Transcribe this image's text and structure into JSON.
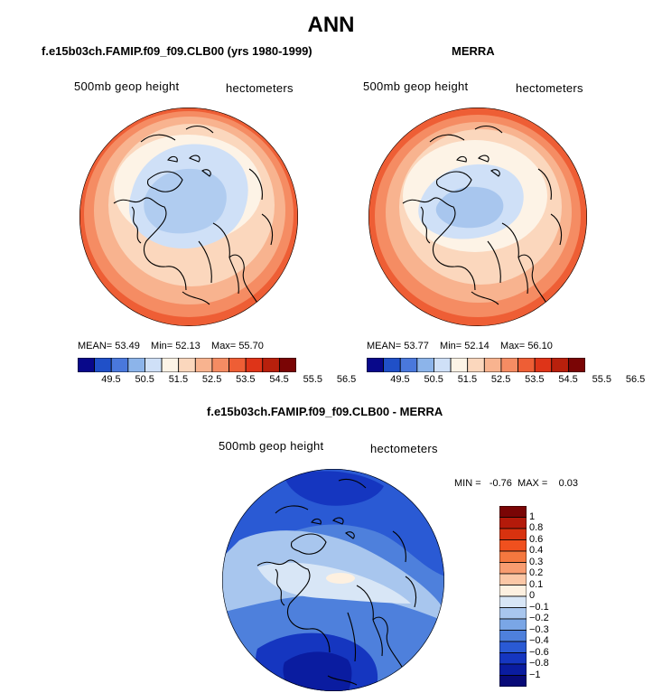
{
  "title": "ANN",
  "panels": [
    {
      "title": "f.e15b03ch.FAMIP.f09_f09.CLB00 (yrs 1980-1999)",
      "variable_label": "500mb geop height",
      "units_label": "hectometers",
      "stats": {
        "mean": "53.49",
        "min": "52.13",
        "max": "55.70"
      }
    },
    {
      "title": "MERRA",
      "variable_label": "500mb geop height",
      "units_label": "hectometers",
      "stats": {
        "mean": "53.77",
        "min": "52.14",
        "max": "56.10"
      }
    }
  ],
  "stat_labels": {
    "mean": "MEAN=",
    "min": "Min=",
    "max": "Max="
  },
  "abs_colorbar": {
    "colors": [
      "#08088a",
      "#2050c8",
      "#4a78dc",
      "#8cb4ea",
      "#cfe0f7",
      "#fdf3e6",
      "#fbd7bd",
      "#f8b38f",
      "#f58c63",
      "#ee5e35",
      "#de3418",
      "#b8200c",
      "#7a0505"
    ],
    "tick_labels": [
      "49.5",
      "50.5",
      "51.5",
      "52.5",
      "53.5",
      "54.5",
      "55.5",
      "56.5"
    ]
  },
  "diff_panel": {
    "title": "f.e15b03ch.FAMIP.f09_f09.CLB00 - MERRA",
    "variable_label": "500mb geop height",
    "units_label": "hectometers",
    "min_label": "MIN =",
    "min_value": "-0.76",
    "max_label": "MAX =",
    "max_value": "0.03"
  },
  "diff_colorbar": {
    "colors": [
      "#7a0505",
      "#b41a0a",
      "#d8320f",
      "#f0501e",
      "#f5783f",
      "#f89c70",
      "#fbc7a6",
      "#fdf0e0",
      "#d8e6f6",
      "#a8c6ee",
      "#7aa6e6",
      "#4e80dc",
      "#2a5ad4",
      "#1536c0",
      "#0a1ca0",
      "#080a78"
    ],
    "tick_labels": [
      "1",
      "0.8",
      "0.6",
      "0.4",
      "0.3",
      "0.2",
      "0.1",
      "0",
      "−0.1",
      "−0.2",
      "−0.3",
      "−0.4",
      "−0.6",
      "−0.8",
      "−1"
    ]
  }
}
